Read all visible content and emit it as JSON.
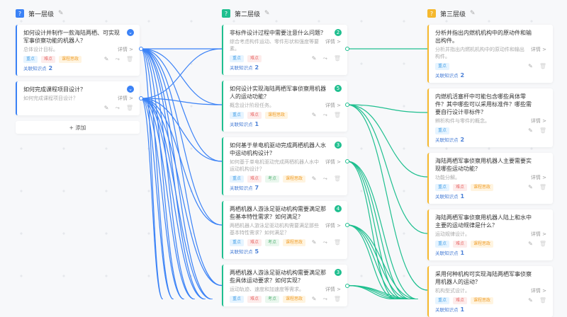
{
  "colors": {
    "level1": "#3b82f6",
    "level2": "#1fbf8f",
    "level3": "#f5b82e"
  },
  "tag_labels": [
    "重点",
    "难点",
    "考点",
    "课程思政"
  ],
  "common": {
    "detail": "详情 >",
    "related": "关联知识点",
    "add": "+ 添加"
  },
  "columns": [
    {
      "title": "第一层级",
      "badge": "?",
      "cards": [
        {
          "title": "如何设计并制作一款海陆两栖、可实现军事侦察功能的机器人？",
          "desc": "总体设计目标。",
          "tags": [
            0,
            1,
            3
          ],
          "related": "2",
          "expand": true
        },
        {
          "title": "如何完成课程项目设计？",
          "desc": "如何完成课程项目设计？",
          "tags": [],
          "expand": true
        }
      ]
    },
    {
      "title": "第二层级",
      "badge": "?",
      "cards": [
        {
          "title": "非标件设计过程中需要注意什么问题？",
          "desc": "综合考虑构件运动、零件形状和强度等要素。",
          "tags": [
            0,
            1
          ],
          "related": "2",
          "num": "2"
        },
        {
          "title": "如何设计实现海陆两栖军事侦察用机器人的运动功能？",
          "desc": "概念设计阶段任务。",
          "tags": [
            0,
            1,
            3
          ],
          "related": "1",
          "num": "5"
        },
        {
          "title": "如何基于单电机驱动完成两栖机器人水中运动机构设计？",
          "desc": "如何基于单电机驱动完成两栖机器人水中运动机构设计？",
          "tags": [
            0,
            1,
            2,
            3
          ],
          "related": "7",
          "num": "3"
        },
        {
          "title": "两栖机器人游泳足驱动机构需要满足那些基本特性需求？如何满足？",
          "desc": "两栖机器人游泳足驱动机构需要满足那些基本特性需求？如何满足？",
          "tags": [
            0,
            1,
            2,
            3
          ],
          "related": "5",
          "num": "4"
        },
        {
          "title": "两栖机器人游泳足驱动机构需要满足那些具体运动要求？如何实现？",
          "desc": "运动轨迹、速度和加速度等需求。",
          "tags": [
            0,
            1,
            2,
            3
          ],
          "related": "",
          "num": "3"
        }
      ]
    },
    {
      "title": "第三层级",
      "badge": "?",
      "cards": [
        {
          "title": "分析并指出内燃机机构中的原动件和输出构件。",
          "desc": "分析并指出内燃机机构中的原动件和输出构件。",
          "tags": [
            0
          ],
          "related": "2"
        },
        {
          "title": "内燃机活塞杆中可能包含哪些具体零件？其中哪些可以采用标准件？哪些需要自行设计非标件？",
          "desc": "辨析构件与零件的概念。",
          "tags": [
            0
          ],
          "related": "2"
        },
        {
          "title": "海陆两栖军事侦察用机器人主要需要实现哪些运动功能？",
          "desc": "功能分解。",
          "tags": [
            0,
            1,
            3
          ],
          "related": "1"
        },
        {
          "title": "海陆两栖军事侦察用机器人陆上和水中主要的运动规律是什么？",
          "desc": "运动规律设计。",
          "tags": [
            0,
            1,
            3
          ],
          "related": "1"
        },
        {
          "title": "采用何种机构可实现海陆两栖军事侦察用机器人的运动？",
          "desc": "机构型式设计。",
          "tags": [
            0,
            1,
            3
          ],
          "related": "1"
        }
      ]
    }
  ]
}
